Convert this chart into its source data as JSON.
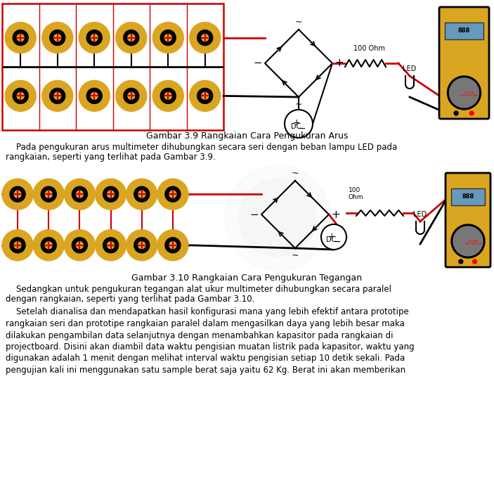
{
  "fig_caption1": "Gambar 3.9 Rangkaian Cara Pengukuran Arus",
  "fig_caption2": "Gambar 3.10 Rangkaian Cara Pengukuran Tegangan",
  "para1_l1": "    Pada pengukuran arus multimeter dihubungkan secara seri dengan beban lampu LED pada",
  "para1_l2": "rangkaian, seperti yang terlihat pada Gambar 3.9.",
  "para2_l1": "    Sedangkan untuk pengukuran tegangan alat ukur multimeter dihubungkan secara paralel",
  "para2_l2": "dengan rangkaian, seperti yang terlihat pada Gambar 3.10.",
  "para3_l1": "    Setelah dianalisa dan mendapatkan hasil konfigurasi mana yang lebih efektif antara prototipe",
  "para3_l2": "rangkaian seri dan prototipe rangkaian paralel dalam mengasilkan daya yang lebih besar maka",
  "para3_l3": "dilakukan pengambilan data selanjutnya dengan menambahkan kapasitor pada rangkaian di",
  "para3_l4": "projectboard. Disini akan diambil data waktu pengisian muatan listrik pada kapasitor, waktu yang",
  "para3_l5": "digunakan adalah 1 menit dengan melihat interval waktu pengisian setiap 10 detik sekali. Pada",
  "para3_l6": "pengujian kali ini menggunakan satu sample berat saja yaitu 62 Kg. Berat ini akan memberikan",
  "gold": "#DAA520",
  "red": "#cc0000",
  "bg": "#ffffff"
}
